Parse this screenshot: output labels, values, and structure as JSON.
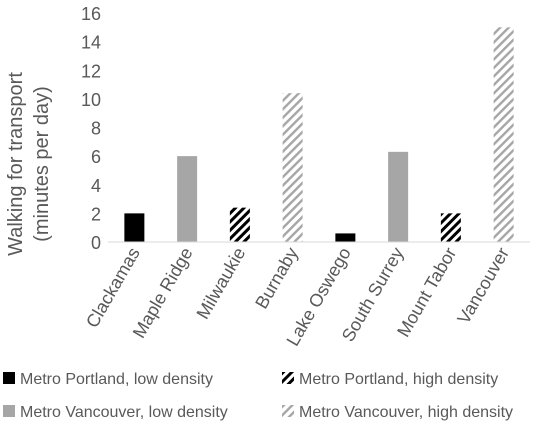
{
  "chart_data": {
    "type": "bar",
    "ylabel_line1": "Walking for transport",
    "ylabel_line2": "(minutes per day)",
    "ylim": [
      0,
      16
    ],
    "yticks": [
      0,
      2,
      4,
      6,
      8,
      10,
      12,
      14,
      16
    ],
    "grid": false,
    "legend_position": "bottom",
    "categories": [
      "Clackamas",
      "Maple Ridge",
      "Milwaukie",
      "Burnaby",
      "Lake Oswego",
      "South Surrey",
      "Mount Tabor",
      "Vancouver"
    ],
    "series": [
      {
        "name": "Metro Portland, low density",
        "style": "solid-black",
        "color": "#000000",
        "values": [
          2.0,
          null,
          null,
          null,
          0.6,
          null,
          null,
          null
        ]
      },
      {
        "name": "Metro Portland, high density",
        "style": "hatch-black",
        "color": "#000000",
        "values": [
          null,
          null,
          2.4,
          null,
          null,
          null,
          2.0,
          null
        ]
      },
      {
        "name": "Metro Vancouver, low density",
        "style": "solid-gray",
        "color": "#a6a6a6",
        "values": [
          null,
          6.0,
          null,
          null,
          null,
          6.3,
          null,
          null
        ]
      },
      {
        "name": "Metro Vancouver, high density",
        "style": "hatch-gray",
        "color": "#a6a6a6",
        "values": [
          null,
          null,
          null,
          10.4,
          null,
          null,
          null,
          15.0
        ]
      }
    ]
  }
}
